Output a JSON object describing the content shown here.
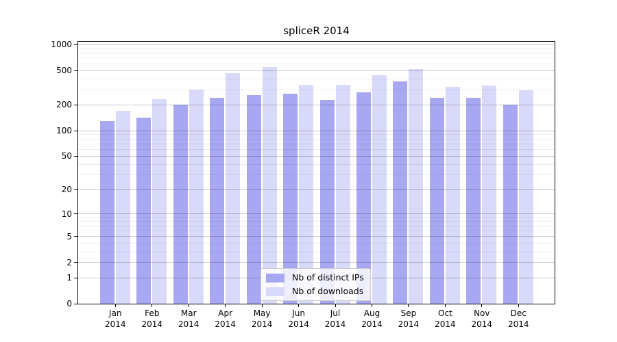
{
  "chart_data": {
    "type": "bar",
    "title": "spliceR 2014",
    "categories": [
      "Jan 2014",
      "Feb 2014",
      "Mar 2014",
      "Apr 2014",
      "May 2014",
      "Jun 2014",
      "Jul 2014",
      "Aug 2014",
      "Sep 2014",
      "Oct 2014",
      "Nov 2014",
      "Dec 2014"
    ],
    "series": [
      {
        "name": "Nb of distinct IPs",
        "color": "#a8a8f2",
        "values": [
          130,
          143,
          202,
          240,
          261,
          269,
          228,
          280,
          378,
          243,
          243,
          202
        ]
      },
      {
        "name": "Nb of downloads",
        "color": "#d9d9f9",
        "values": [
          170,
          232,
          302,
          467,
          545,
          340,
          340,
          445,
          516,
          326,
          336,
          294
        ]
      }
    ],
    "yscale": "log1p",
    "ylim": [
      0,
      1080
    ],
    "yticks": [
      0,
      1,
      2,
      5,
      10,
      20,
      50,
      100,
      200,
      500,
      1000
    ],
    "yticks_minor": [
      3,
      4,
      6,
      7,
      8,
      9,
      30,
      40,
      60,
      70,
      80,
      90,
      300,
      400,
      600,
      700,
      800,
      900
    ],
    "grid": {
      "show": true,
      "major_color": "#c7c7c7",
      "minor_color": "#ededed"
    },
    "legend": {
      "position": "lower center"
    },
    "xlabel": "",
    "ylabel": ""
  }
}
